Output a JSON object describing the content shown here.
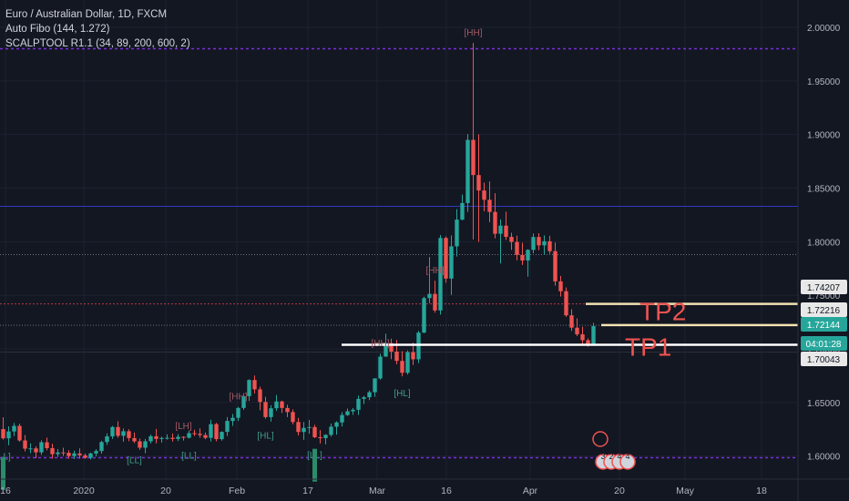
{
  "legend": {
    "symbol": "Euro / Australian Dollar, 1D, FXCM",
    "indicator1": "Auto Fibo (144, 1.272)",
    "indicator2": "SCALPTOOL R1.1 (34, 89, 200, 600, 2)"
  },
  "chart_data": {
    "type": "candlestick",
    "instrument": "Euro / Australian Dollar",
    "timeframe": "1D",
    "source": "FXCM",
    "ylim": [
      1.5785,
      2.0255
    ],
    "y_ticks": [
      "2.00000",
      "1.95000",
      "1.90000",
      "1.85000",
      "1.80000",
      "1.75000",
      "1.70000",
      "1.65000",
      "1.60000"
    ],
    "x_ticks": [
      "16",
      "2020",
      "20",
      "Feb",
      "17",
      "Mar",
      "16",
      "Apr",
      "20",
      "May",
      "18"
    ],
    "candles_ohlc": [
      [
        1.6252,
        1.6362,
        1.6154,
        1.6166
      ],
      [
        1.6166,
        1.6278,
        1.6102,
        1.623
      ],
      [
        1.623,
        1.631,
        1.6188,
        1.6282
      ],
      [
        1.6282,
        1.6302,
        1.6135,
        1.6146
      ],
      [
        1.6146,
        1.6196,
        1.6043,
        1.6069
      ],
      [
        1.6069,
        1.6119,
        1.6027,
        1.6072
      ],
      [
        1.6072,
        1.6092,
        1.598,
        1.6035
      ],
      [
        1.6035,
        1.6148,
        1.6011,
        1.6129
      ],
      [
        1.6129,
        1.6173,
        1.6054,
        1.6074
      ],
      [
        1.6074,
        1.6115,
        1.5976,
        1.6018
      ],
      [
        1.6018,
        1.6065,
        1.5992,
        1.6034
      ],
      [
        1.6034,
        1.6078,
        1.6002,
        1.6031
      ],
      [
        1.6031,
        1.6055,
        1.5975,
        1.6
      ],
      [
        1.6,
        1.6052,
        1.5972,
        1.6025
      ],
      [
        1.6025,
        1.6072,
        1.5976,
        1.6007
      ],
      [
        1.6007,
        1.6024,
        1.5975,
        1.5984
      ],
      [
        1.5984,
        1.6031,
        1.5969,
        1.6025
      ],
      [
        1.6025,
        1.6063,
        1.5999,
        1.6047
      ],
      [
        1.6047,
        1.6143,
        1.6022,
        1.6131
      ],
      [
        1.6131,
        1.6212,
        1.6105,
        1.6184
      ],
      [
        1.6184,
        1.6281,
        1.616,
        1.6271
      ],
      [
        1.6271,
        1.6325,
        1.6172,
        1.6189
      ],
      [
        1.6189,
        1.6258,
        1.6135,
        1.6232
      ],
      [
        1.6232,
        1.625,
        1.6139,
        1.6168
      ],
      [
        1.6168,
        1.6219,
        1.6122,
        1.6138
      ],
      [
        1.6138,
        1.6164,
        1.6058,
        1.6078
      ],
      [
        1.6078,
        1.616,
        1.6027,
        1.6138
      ],
      [
        1.6138,
        1.6201,
        1.6118,
        1.6185
      ],
      [
        1.6185,
        1.6253,
        1.6119,
        1.616
      ],
      [
        1.616,
        1.6181,
        1.6126,
        1.6169
      ],
      [
        1.6169,
        1.6202,
        1.6155,
        1.6171
      ],
      [
        1.6171,
        1.6211,
        1.6136,
        1.616
      ],
      [
        1.616,
        1.6206,
        1.614,
        1.618
      ],
      [
        1.618,
        1.6185,
        1.6145,
        1.6171
      ],
      [
        1.6171,
        1.6237,
        1.6164,
        1.6214
      ],
      [
        1.6214,
        1.6245,
        1.6188,
        1.6208
      ],
      [
        1.6208,
        1.6259,
        1.6172,
        1.6196
      ],
      [
        1.6196,
        1.622,
        1.6158,
        1.617
      ],
      [
        1.617,
        1.634,
        1.6136,
        1.6298
      ],
      [
        1.6298,
        1.631,
        1.6138,
        1.6158
      ],
      [
        1.6158,
        1.623,
        1.6144,
        1.6226
      ],
      [
        1.6226,
        1.6364,
        1.6188,
        1.6328
      ],
      [
        1.6328,
        1.6393,
        1.6282,
        1.6357
      ],
      [
        1.6357,
        1.646,
        1.6328,
        1.6449
      ],
      [
        1.6449,
        1.6581,
        1.6431,
        1.6559
      ],
      [
        1.6559,
        1.6717,
        1.6515,
        1.671
      ],
      [
        1.671,
        1.6752,
        1.6585,
        1.6623
      ],
      [
        1.6623,
        1.6648,
        1.6428,
        1.6505
      ],
      [
        1.6505,
        1.6553,
        1.6349,
        1.6364
      ],
      [
        1.6364,
        1.6474,
        1.6321,
        1.6446
      ],
      [
        1.6446,
        1.657,
        1.6421,
        1.651
      ],
      [
        1.651,
        1.6517,
        1.6402,
        1.6449
      ],
      [
        1.6449,
        1.6479,
        1.6364,
        1.6411
      ],
      [
        1.6411,
        1.6436,
        1.6296,
        1.6318
      ],
      [
        1.6318,
        1.6357,
        1.6193,
        1.6225
      ],
      [
        1.6225,
        1.6318,
        1.6151,
        1.6263
      ],
      [
        1.6263,
        1.6337,
        1.6208,
        1.6271
      ],
      [
        1.6271,
        1.6292,
        1.6167,
        1.6176
      ],
      [
        1.6176,
        1.6243,
        1.6119,
        1.6168
      ],
      [
        1.6168,
        1.6204,
        1.611,
        1.6198
      ],
      [
        1.6198,
        1.6303,
        1.6181,
        1.6274
      ],
      [
        1.6274,
        1.6325,
        1.6199,
        1.6314
      ],
      [
        1.6314,
        1.641,
        1.6276,
        1.6383
      ],
      [
        1.6383,
        1.6444,
        1.6376,
        1.6418
      ],
      [
        1.6418,
        1.6448,
        1.6385,
        1.6432
      ],
      [
        1.6432,
        1.6564,
        1.6384,
        1.6534
      ],
      [
        1.6534,
        1.6562,
        1.6485,
        1.6549
      ],
      [
        1.6549,
        1.6611,
        1.6522,
        1.6596
      ],
      [
        1.6596,
        1.6725,
        1.6553,
        1.6725
      ],
      [
        1.6725,
        1.6956,
        1.6712,
        1.6928
      ],
      [
        1.6928,
        1.7142,
        1.6927,
        1.7054
      ],
      [
        1.7054,
        1.7095,
        1.6905,
        1.6975
      ],
      [
        1.6975,
        1.7083,
        1.6856,
        1.6888
      ],
      [
        1.6888,
        1.6979,
        1.6744,
        1.6777
      ],
      [
        1.6777,
        1.6985,
        1.676,
        1.697
      ],
      [
        1.697,
        1.7059,
        1.6849,
        1.6903
      ],
      [
        1.6903,
        1.7168,
        1.6867,
        1.7152
      ],
      [
        1.7152,
        1.7488,
        1.7146,
        1.7474
      ],
      [
        1.7474,
        1.7858,
        1.7427,
        1.7513
      ],
      [
        1.7513,
        1.7637,
        1.7338,
        1.7359
      ],
      [
        1.7359,
        1.8062,
        1.732,
        1.8035
      ],
      [
        1.8035,
        1.805,
        1.7617,
        1.7656
      ],
      [
        1.7656,
        1.8058,
        1.7504,
        1.7957
      ],
      [
        1.7957,
        1.8304,
        1.7862,
        1.8206
      ],
      [
        1.8206,
        1.844,
        1.82,
        1.8361
      ],
      [
        1.8361,
        1.9004,
        1.8278,
        1.895
      ],
      [
        1.895,
        1.9854,
        1.8021,
        1.8622
      ],
      [
        1.8622,
        1.9001,
        1.7999,
        1.8478
      ],
      [
        1.8478,
        1.8551,
        1.8283,
        1.8391
      ],
      [
        1.8391,
        1.8562,
        1.8183,
        1.8278
      ],
      [
        1.8278,
        1.8452,
        1.8032,
        1.8074
      ],
      [
        1.8074,
        1.8207,
        1.7797,
        1.815
      ],
      [
        1.815,
        1.828,
        1.8017,
        1.8045
      ],
      [
        1.8045,
        1.8084,
        1.7923,
        1.7998
      ],
      [
        1.7998,
        1.8056,
        1.7827,
        1.7877
      ],
      [
        1.7877,
        1.7991,
        1.7783,
        1.7825
      ],
      [
        1.7825,
        1.793,
        1.7674,
        1.7924
      ],
      [
        1.7924,
        1.8076,
        1.7893,
        1.8044
      ],
      [
        1.8044,
        1.8079,
        1.7921,
        1.7966
      ],
      [
        1.7966,
        1.8059,
        1.788,
        1.8004
      ],
      [
        1.8004,
        1.8055,
        1.7887,
        1.7912
      ],
      [
        1.7912,
        1.7992,
        1.7591,
        1.763
      ],
      [
        1.763,
        1.7681,
        1.7489,
        1.7538
      ],
      [
        1.7538,
        1.7573,
        1.73,
        1.7313
      ],
      [
        1.7313,
        1.737,
        1.7167,
        1.7198
      ],
      [
        1.7198,
        1.7285,
        1.7119,
        1.7136
      ],
      [
        1.7136,
        1.7206,
        1.7033,
        1.7081
      ],
      [
        1.7081,
        1.7098,
        1.702,
        1.7044
      ],
      [
        1.7044,
        1.7244,
        1.7042,
        1.7214
      ]
    ],
    "price_scale_labels": [
      {
        "value": "1.74207",
        "tone": "light"
      },
      {
        "value": "1.72216",
        "tone": "light"
      },
      {
        "value": "1.72144",
        "tone": "green"
      },
      {
        "value": "04:01:28",
        "tone": "green"
      },
      {
        "value": "1.70043",
        "tone": "light"
      }
    ],
    "horizontal_levels": [
      {
        "value": 1.98,
        "style": "dotted-purple"
      },
      {
        "value": 1.833,
        "style": "solid-blue"
      },
      {
        "value": 1.788,
        "style": "dotted-grey"
      },
      {
        "value": 1.742,
        "style": "dotted-red"
      },
      {
        "value": 1.722,
        "style": "dotted-grey"
      },
      {
        "value": 1.5985,
        "style": "dotted-purple"
      }
    ],
    "target_lines": [
      {
        "label": "TP2",
        "value": 1.742
      },
      {
        "label": "",
        "value": 1.7222
      },
      {
        "label": "TP1",
        "value": 1.7039
      }
    ],
    "swing_labels": [
      {
        "text": "[HH]",
        "index": 86,
        "position": "above"
      },
      {
        "text": "[HH]",
        "index": 79,
        "position": "above"
      },
      {
        "text": "[HH]",
        "index": 69,
        "position": "above"
      },
      {
        "text": "[HH]",
        "index": 43,
        "position": "above"
      },
      {
        "text": "[LH]",
        "index": 33,
        "position": "above"
      },
      {
        "text": "[HL]",
        "index": 73,
        "position": "below"
      },
      {
        "text": "[HL]",
        "index": 48,
        "position": "below"
      },
      {
        "text": "[LL]",
        "index": 57,
        "position": "below"
      },
      {
        "text": "[LL]",
        "index": 24,
        "position": "below"
      },
      {
        "text": "[LL]",
        "index": 34,
        "position": "below"
      },
      {
        "text": "[LL]",
        "index": 0,
        "position": "below"
      }
    ],
    "event_badges": [
      "3",
      "2",
      "4",
      "4"
    ]
  }
}
